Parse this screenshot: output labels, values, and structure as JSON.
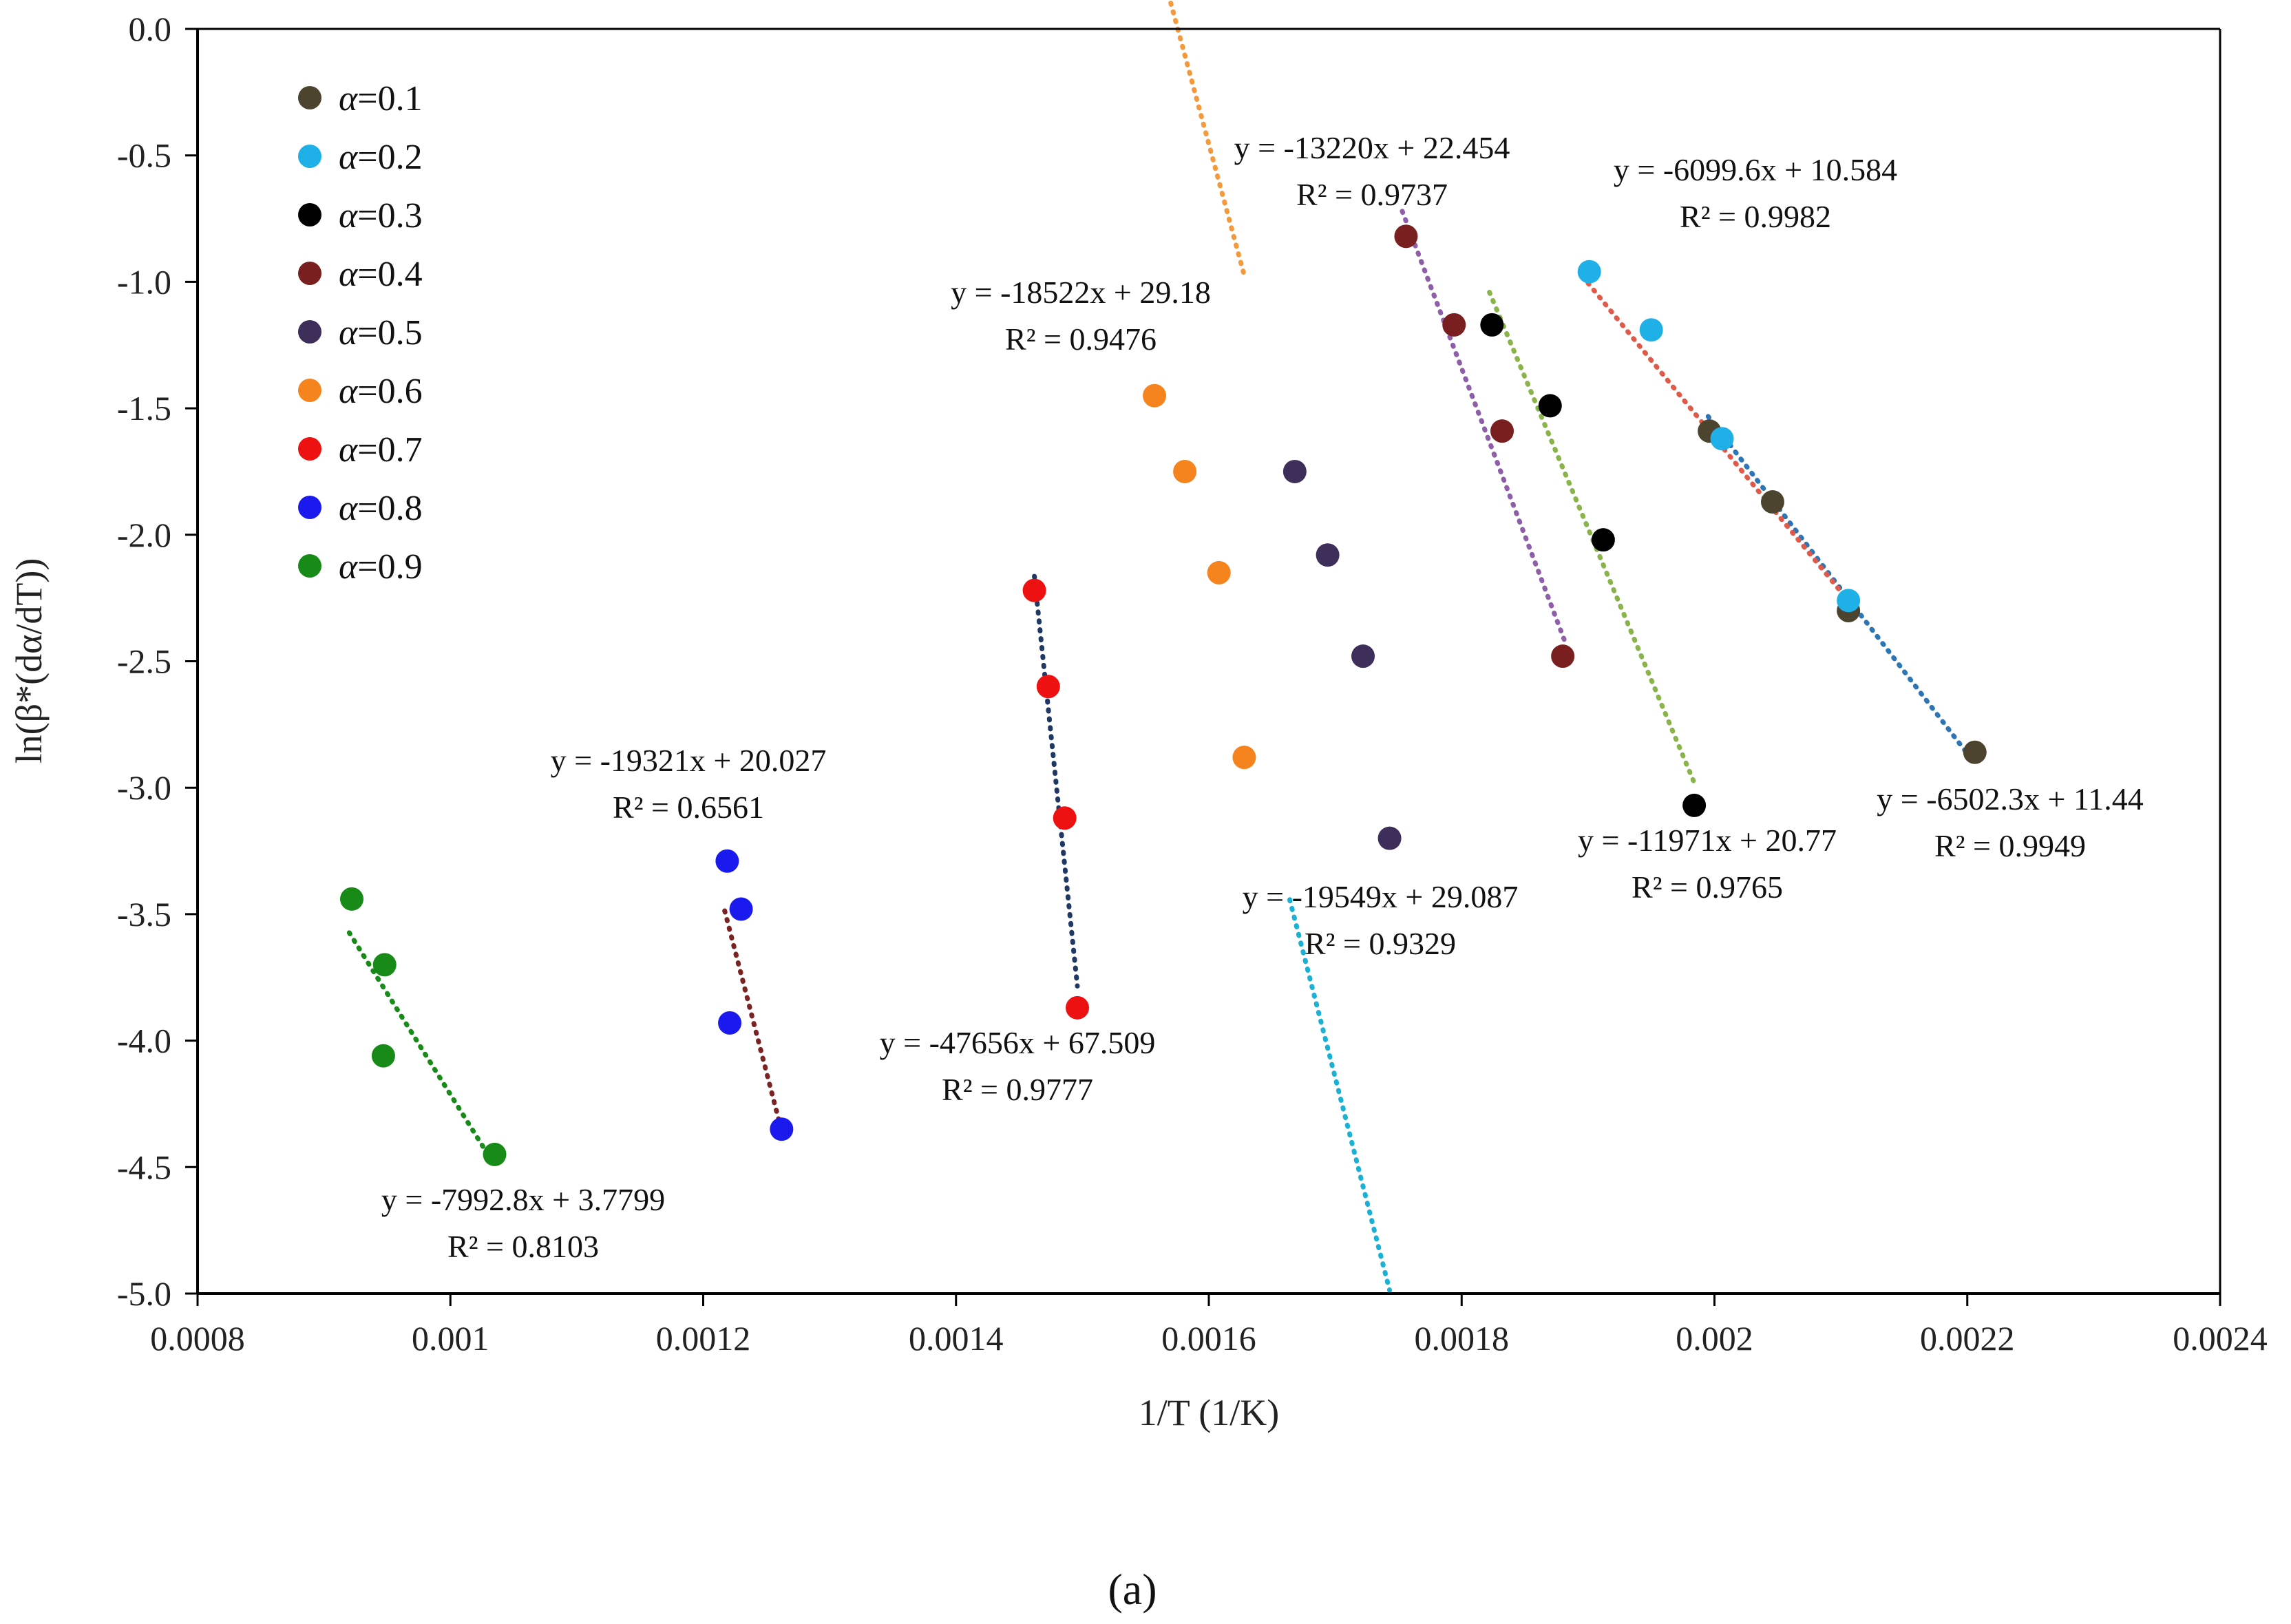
{
  "chart_data": {
    "type": "scatter",
    "title": "",
    "caption": "(a)",
    "xlabel": "1/T (1/K)",
    "ylabel": "ln(β*(dα/dT))",
    "xlim": [
      0.0008,
      0.0024
    ],
    "ylim": [
      -5.0,
      0.0
    ],
    "x_ticks": [
      0.0008,
      0.001,
      0.0012,
      0.0014,
      0.0016,
      0.0018,
      0.002,
      0.0022,
      0.0024
    ],
    "x_tick_labels": [
      "0.0008",
      "0.001",
      "0.0012",
      "0.0014",
      "0.0016",
      "0.0018",
      "0.002",
      "0.0022",
      "0.0024"
    ],
    "y_ticks": [
      0.0,
      -0.5,
      -1.0,
      -1.5,
      -2.0,
      -2.5,
      -3.0,
      -3.5,
      -4.0,
      -4.5,
      -5.0
    ],
    "y_tick_labels": [
      "0.0",
      "-0.5",
      "-1.0",
      "-1.5",
      "-2.0",
      "-2.5",
      "-3.0",
      "-3.5",
      "-4.0",
      "-4.5",
      "-5.0"
    ],
    "legend_position": "top-left",
    "series": [
      {
        "name": "α=0.1",
        "prefix": "α",
        "value_label": "=0.1",
        "color": "#4d4430",
        "trend_color": "#2e75b6",
        "points": [
          [
            0.001996,
            -1.59
          ],
          [
            0.002046,
            -1.87
          ],
          [
            0.002106,
            -2.3
          ],
          [
            0.002206,
            -2.86
          ]
        ],
        "fit": {
          "slope": -6502.3,
          "intercept": 11.44,
          "x_range": [
            0.001995,
            0.002206
          ]
        },
        "equation": "y = -6502.3x + 11.44",
        "r2": "R² = 0.9949"
      },
      {
        "name": "α=0.2",
        "prefix": "α",
        "value_label": "=0.2",
        "color": "#1fb0e8",
        "trend_color": "#e05a4a",
        "points": [
          [
            0.001901,
            -0.96
          ],
          [
            0.00195,
            -1.19
          ],
          [
            0.002006,
            -1.62
          ],
          [
            0.002106,
            -2.26
          ]
        ],
        "fit": {
          "slope": -6099.6,
          "intercept": 10.584,
          "x_range": [
            0.0019,
            0.0021
          ]
        },
        "equation": "y = -6099.6x + 10.584",
        "r2": "R² = 0.9982"
      },
      {
        "name": "α=0.3",
        "prefix": "α",
        "value_label": "=0.3",
        "color": "#000000",
        "trend_color": "#8ab44a",
        "points": [
          [
            0.001824,
            -1.17
          ],
          [
            0.00187,
            -1.49
          ],
          [
            0.001912,
            -2.02
          ],
          [
            0.001984,
            -3.07
          ]
        ],
        "fit": {
          "slope": -11971,
          "intercept": 20.77,
          "x_range": [
            0.001822,
            0.001985
          ]
        },
        "equation": "y = -11971x + 20.77",
        "r2": "R² = 0.9765"
      },
      {
        "name": "α=0.4",
        "prefix": "α",
        "value_label": "=0.4",
        "color": "#7a1f1f",
        "trend_color": "#8e5fa8",
        "points": [
          [
            0.001756,
            -0.82
          ],
          [
            0.001794,
            -1.17
          ],
          [
            0.001832,
            -1.59
          ],
          [
            0.00188,
            -2.48
          ]
        ],
        "fit": {
          "slope": -13220,
          "intercept": 22.454,
          "x_range": [
            0.001753,
            0.001882
          ]
        },
        "equation": "y = -13220x + 22.454",
        "r2": "R² = 0.9737"
      },
      {
        "name": "α=0.5",
        "prefix": "α",
        "value_label": "=0.5",
        "color": "#3d2e5a",
        "trend_color": "#1bb1d4",
        "points": [
          [
            0.001668,
            -1.75
          ],
          [
            0.001694,
            -2.08
          ],
          [
            0.001722,
            -2.48
          ],
          [
            0.001743,
            -3.2
          ]
        ],
        "fit": {
          "slope": -19549,
          "intercept": 29.087,
          "x_range": [
            0.001664,
            0.001743
          ]
        },
        "equation": "y = -19549x + 29.087",
        "r2": "R² = 0.9329"
      },
      {
        "name": "α=0.6",
        "prefix": "α",
        "value_label": "=0.6",
        "color": "#f5841f",
        "trend_color": "#f59a3c",
        "points": [
          [
            0.001557,
            -1.45
          ],
          [
            0.001581,
            -1.75
          ],
          [
            0.001608,
            -2.15
          ],
          [
            0.001628,
            -2.88
          ]
        ],
        "fit": {
          "slope": -18522,
          "intercept": 29.18,
          "x_range": [
            0.001557,
            0.001628
          ]
        },
        "equation": "y = -18522x + 29.18",
        "r2": "R² = 0.9476"
      },
      {
        "name": "α=0.7",
        "prefix": "α",
        "value_label": "=0.7",
        "color": "#ee1111",
        "trend_color": "#1f3864",
        "points": [
          [
            0.001462,
            -2.22
          ],
          [
            0.001473,
            -2.6
          ],
          [
            0.001486,
            -3.12
          ],
          [
            0.001496,
            -3.87
          ]
        ],
        "fit": {
          "slope": -47656,
          "intercept": 67.509,
          "x_range": [
            0.001462,
            0.001496
          ]
        },
        "equation": "y = -47656x + 67.509",
        "r2": "R² = 0.9777"
      },
      {
        "name": "α=0.8",
        "prefix": "α",
        "value_label": "=0.8",
        "color": "#1a1aee",
        "trend_color": "#7b2323",
        "points": [
          [
            0.001219,
            -3.29
          ],
          [
            0.00123,
            -3.48
          ],
          [
            0.001221,
            -3.93
          ],
          [
            0.001262,
            -4.35
          ]
        ],
        "fit": {
          "slope": -19321,
          "intercept": 20.027,
          "x_range": [
            0.001217,
            0.001262
          ]
        },
        "equation": "y = -19321x + 20.027",
        "r2": "R² = 0.6561"
      },
      {
        "name": "α=0.9",
        "prefix": "α",
        "value_label": "=0.9",
        "color": "#178a17",
        "trend_color": "#178a17",
        "points": [
          [
            0.000922,
            -3.44
          ],
          [
            0.000948,
            -3.7
          ],
          [
            0.000947,
            -4.06
          ],
          [
            0.001035,
            -4.45
          ]
        ],
        "fit": {
          "slope": -7992.8,
          "intercept": 3.7799,
          "x_range": [
            0.00092,
            0.001035
          ]
        },
        "equation": "y = -7992.8x + 3.7799",
        "r2": "R² = 0.8103"
      }
    ]
  }
}
